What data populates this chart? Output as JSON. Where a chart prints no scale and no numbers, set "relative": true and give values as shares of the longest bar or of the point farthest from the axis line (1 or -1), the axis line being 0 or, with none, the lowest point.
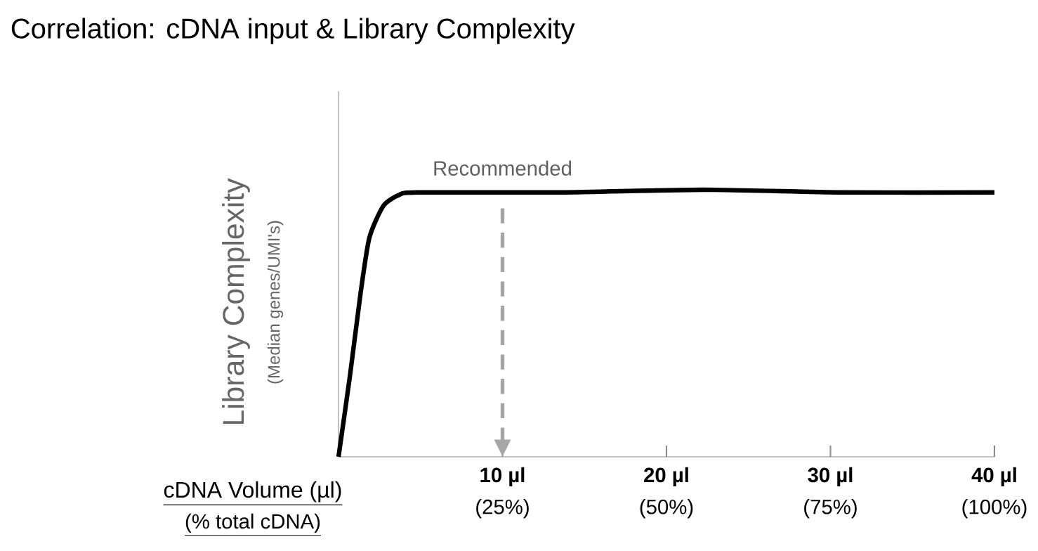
{
  "chart_data": {
    "type": "line",
    "title": "Correlation: cDNA input & Library Complexity",
    "xlabel": "cDNA Volume (µl)",
    "x2label": "(% total cDNA)",
    "ylabel": "Library Complexity",
    "annotations": [
      "(Median genes/UMI's)"
    ],
    "relative": true,
    "x": [
      0,
      0.69,
      1.34,
      1.88,
      2.74,
      3.68,
      4.8,
      13.6,
      22.2,
      30.7,
      40
    ],
    "series": [
      {
        "color": "#000000",
        "values": [
          0,
          0.3,
          0.61,
          0.82,
          0.94,
          0.98,
          0.99,
          0.99,
          1.0,
          0.99,
          0.99
        ]
      }
    ],
    "xlim": [
      0,
      40
    ],
    "xticks": [
      {
        "value": 10,
        "label": "10 µl"
      },
      {
        "value": 20,
        "label": "20 µl"
      },
      {
        "value": 30,
        "label": "30 µl"
      },
      {
        "value": 40,
        "label": "40 µl"
      }
    ],
    "x2lim": [
      0,
      100
    ],
    "x2ticks": [
      {
        "value": 25,
        "label": "(25%)"
      },
      {
        "value": 50,
        "label": "(50%)"
      },
      {
        "value": 75,
        "label": "(75%)"
      },
      {
        "value": 100,
        "label": "(100%)"
      }
    ],
    "ref_lines": [
      {
        "axis": "x",
        "value": 10,
        "label": "Recommended",
        "color": "#a6a6a6",
        "line_style": "dashed"
      }
    ],
    "grid": false,
    "marker": "none",
    "line_style": "solid"
  }
}
